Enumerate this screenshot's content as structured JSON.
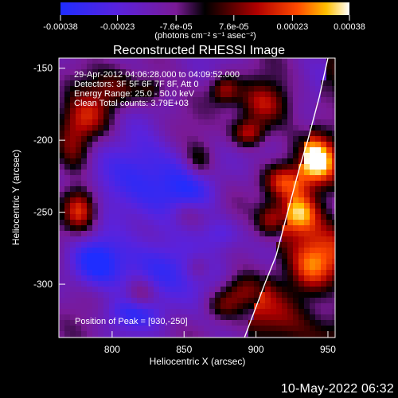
{
  "chart_data": {
    "type": "heatmap",
    "title": "Reconstructed RHESSI Image",
    "xlabel": "Heliocentric X (arcsec)",
    "ylabel": "Heliocentric Y (arcsec)",
    "xticks": [
      800,
      850,
      900,
      950
    ],
    "yticks": [
      -150,
      -200,
      -250,
      -300
    ],
    "xlim": [
      763,
      955
    ],
    "ylim": [
      -337,
      -143
    ],
    "colorbar": {
      "min": -0.00038,
      "max": 0.00038,
      "tick_values": [
        -0.00038,
        -0.00023,
        -7.6e-05,
        7.6e-05,
        0.00023,
        0.00038
      ],
      "tick_labels": [
        "-0.00038",
        "-0.00023",
        "-7.6e-05",
        "7.6e-05",
        "0.00023",
        "0.00038"
      ],
      "units": "(photons cm⁻² s⁻¹ asec⁻²)"
    },
    "info_lines": [
      "29-Apr-2012 04:06:28.000 to 04:09:52.000",
      "Detectors: 3F 5F 6F 7F 8F, Att 0",
      "Energy Range: 25.0 - 50.0 keV",
      "Clean    Total counts: 3.79E+03"
    ],
    "peak_text": "Position of Peak = [930,-250]",
    "peak": {
      "x": 930,
      "y": -250
    },
    "limb_curve": [
      {
        "x": 892,
        "y": -337
      },
      {
        "x": 906,
        "y": -300
      },
      {
        "x": 914,
        "y": -280
      },
      {
        "x": 922,
        "y": -250
      },
      {
        "x": 930,
        "y": -220
      },
      {
        "x": 936,
        "y": -200
      },
      {
        "x": 944,
        "y": -170
      },
      {
        "x": 950,
        "y": -143
      }
    ],
    "hotspots": [
      {
        "x": 783,
        "y": -185,
        "value": 0.00024,
        "sx": 18,
        "sy": 16
      },
      {
        "x": 772,
        "y": -208,
        "value": 0.00026,
        "sx": 14,
        "sy": 20
      },
      {
        "x": 778,
        "y": -248,
        "value": 0.00035,
        "sx": 12,
        "sy": 16
      },
      {
        "x": 804,
        "y": -165,
        "value": 0.0002,
        "sx": 20,
        "sy": 14
      },
      {
        "x": 860,
        "y": -215,
        "value": 0.00017,
        "sx": 10,
        "sy": 12
      },
      {
        "x": 852,
        "y": -251,
        "value": 0.00012,
        "sx": 12,
        "sy": 10
      },
      {
        "x": 820,
        "y": -307,
        "value": 0.00015,
        "sx": 10,
        "sy": 12
      },
      {
        "x": 895,
        "y": -195,
        "value": 0.0003,
        "sx": 12,
        "sy": 10
      },
      {
        "x": 910,
        "y": -255,
        "value": 0.00024,
        "sx": 10,
        "sy": 12
      },
      {
        "x": 920,
        "y": -229,
        "value": 0.0003,
        "sx": 16,
        "sy": 12
      },
      {
        "x": 930,
        "y": -250,
        "value": 0.00038,
        "sx": 14,
        "sy": 14
      },
      {
        "x": 943,
        "y": -214,
        "value": 0.00032,
        "sx": 12,
        "sy": 15
      },
      {
        "x": 938,
        "y": -290,
        "value": 0.00028,
        "sx": 16,
        "sy": 18
      },
      {
        "x": 905,
        "y": -175,
        "value": 0.00026,
        "sx": 18,
        "sy": 15
      },
      {
        "x": 878,
        "y": -165,
        "value": 0.00024,
        "sx": 10,
        "sy": 10
      },
      {
        "x": 890,
        "y": -305,
        "value": 0.0002,
        "sx": 15,
        "sy": 12
      },
      {
        "x": 876,
        "y": -315,
        "value": 0.00016,
        "sx": 12,
        "sy": 10
      },
      {
        "x": 827,
        "y": -165,
        "value": 0.00015,
        "sx": 9,
        "sy": 9
      },
      {
        "x": 860,
        "y": -288,
        "value": 0.00011,
        "sx": 9,
        "sy": 9
      }
    ],
    "coldspots": [
      {
        "x": 810,
        "y": -225,
        "value": -0.00024,
        "sx": 30,
        "sy": 28
      },
      {
        "x": 832,
        "y": -290,
        "value": -0.00025,
        "sx": 26,
        "sy": 22
      },
      {
        "x": 856,
        "y": -235,
        "value": -0.00018,
        "sx": 20,
        "sy": 20
      },
      {
        "x": 875,
        "y": -265,
        "value": -0.00015,
        "sx": 14,
        "sy": 12
      },
      {
        "x": 815,
        "y": -320,
        "value": -0.00018,
        "sx": 20,
        "sy": 10
      },
      {
        "x": 789,
        "y": -285,
        "value": -0.00022,
        "sx": 18,
        "sy": 16
      }
    ]
  },
  "footer_text": "10-May-2022 06:32"
}
